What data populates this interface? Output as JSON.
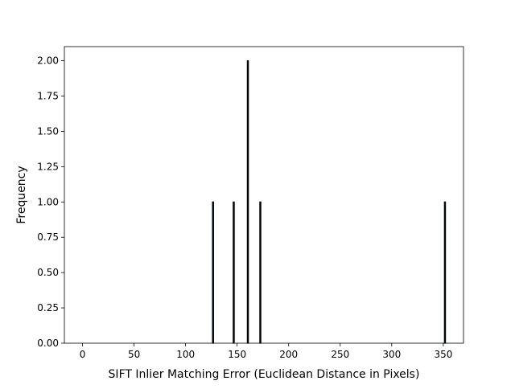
{
  "chart_data": {
    "type": "bar",
    "subtype": "histogram",
    "title": "",
    "xlabel": "SIFT Inlier Matching Error (Euclidean Distance in Pixels)",
    "ylabel": "Frequency",
    "xlim": [
      -17.6,
      369.6
    ],
    "ylim": [
      0,
      2.1
    ],
    "x_ticks": [
      0,
      50,
      100,
      150,
      200,
      250,
      300,
      350
    ],
    "y_ticks": [
      0.0,
      0.25,
      0.5,
      0.75,
      1.0,
      1.25,
      1.5,
      1.75,
      2.0
    ],
    "x_tick_labels": [
      "0",
      "50",
      "100",
      "150",
      "200",
      "250",
      "300",
      "350"
    ],
    "y_tick_labels": [
      "0.00",
      "0.25",
      "0.50",
      "0.75",
      "1.00",
      "1.25",
      "1.50",
      "1.75",
      "2.00"
    ],
    "bin_width": 1.0,
    "bars": [
      {
        "x": 126.6,
        "count": 1
      },
      {
        "x": 146.7,
        "count": 1
      },
      {
        "x": 160.4,
        "count": 2
      },
      {
        "x": 172.5,
        "count": 1
      },
      {
        "x": 351.6,
        "count": 1
      }
    ],
    "bar_fill": "#1f77b4",
    "bar_edge": "#000000",
    "grid": false,
    "legend": "none"
  }
}
